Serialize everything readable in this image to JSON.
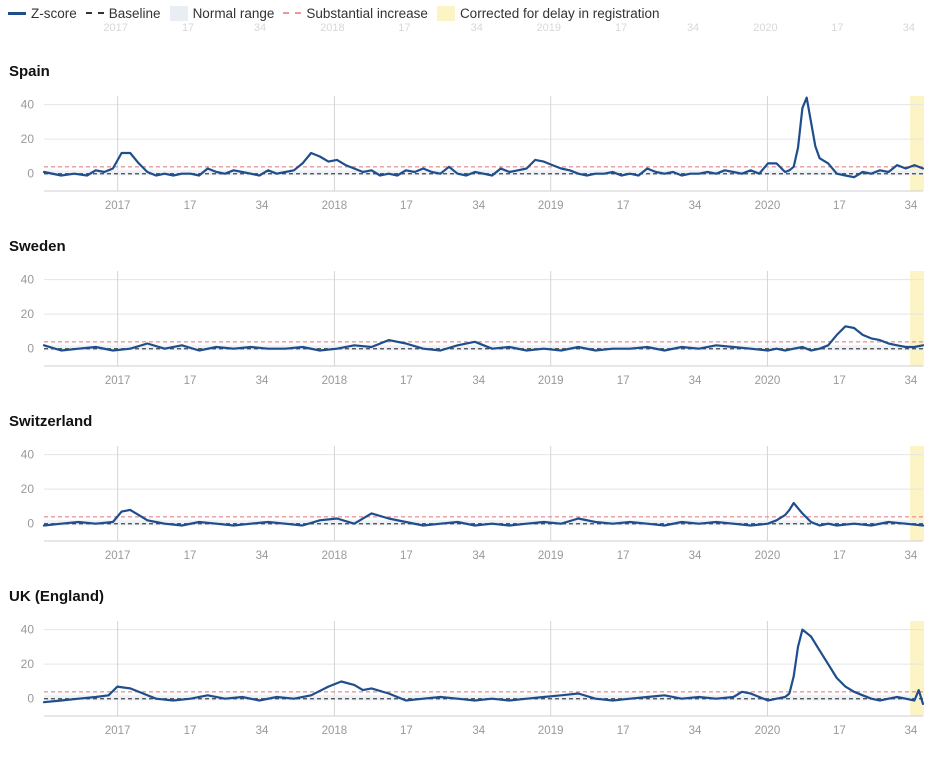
{
  "legend": {
    "zscore": "Z-score",
    "baseline": "Baseline",
    "normal_range": "Normal range",
    "substantial_increase": "Substantial increase",
    "corrected": "Corrected for delay in registration"
  },
  "colors": {
    "zscore_line": "#1f4e8c",
    "baseline": "#444444",
    "normal_range": "#e8eef4",
    "substantial_increase": "#e8999c",
    "corrected": "#fdf4c5",
    "grid": "#e5e5e5"
  },
  "chart_data": [
    {
      "type": "line",
      "title": "Spain",
      "x_tick_labels": [
        "2017",
        "17",
        "34",
        "2018",
        "17",
        "34",
        "2019",
        "17",
        "34",
        "2020",
        "17",
        "34"
      ],
      "ylim": [
        -10,
        45
      ],
      "y_ticks": [
        0,
        20,
        40
      ],
      "baseline": 0,
      "substantial_increase_threshold": 4,
      "series": [
        {
          "name": "Z-score",
          "x": [
            0,
            4,
            7,
            10,
            12,
            14,
            16,
            18,
            20,
            22,
            24,
            26,
            28,
            30,
            32,
            34,
            36,
            38,
            40,
            42,
            44,
            46,
            48,
            50,
            52,
            54,
            56,
            58,
            60,
            62,
            64,
            66,
            68,
            70,
            72,
            74,
            76,
            78,
            80,
            82,
            84,
            86,
            88,
            90,
            92,
            94,
            96,
            98,
            100,
            102,
            104,
            106,
            108,
            110,
            112,
            114,
            116,
            118,
            120,
            122,
            124,
            126,
            128,
            130,
            132,
            134,
            136,
            138,
            140,
            142,
            144,
            146,
            148,
            150,
            152,
            154,
            156,
            158,
            160,
            162,
            164,
            166,
            168,
            170,
            172,
            173,
            174,
            175,
            176,
            177,
            178,
            179,
            180,
            182,
            184,
            186,
            188,
            190,
            192,
            194,
            196,
            198,
            200,
            202,
            204
          ],
          "values": [
            1,
            -1,
            0,
            -1,
            2,
            1,
            3,
            12,
            12,
            6,
            1,
            -1,
            0,
            -1,
            0,
            0,
            -1,
            3,
            1,
            0,
            2,
            1,
            0,
            -1,
            2,
            0,
            1,
            2,
            6,
            12,
            10,
            7,
            8,
            5,
            3,
            1,
            2,
            -1,
            0,
            -1,
            2,
            1,
            3,
            1,
            0,
            4,
            0,
            -1,
            1,
            0,
            -1,
            3,
            1,
            2,
            3,
            8,
            7,
            5,
            3,
            2,
            0,
            -1,
            0,
            0,
            1,
            -1,
            0,
            -1,
            3,
            1,
            0,
            1,
            -1,
            0,
            0,
            1,
            0,
            2,
            1,
            0,
            2,
            0,
            6,
            6,
            1,
            2,
            4,
            15,
            38,
            44,
            30,
            16,
            9,
            6,
            0,
            -1,
            -2,
            1,
            0,
            2,
            1,
            5,
            3,
            5,
            3
          ]
        }
      ]
    },
    {
      "type": "line",
      "title": "Sweden",
      "x_tick_labels": [
        "2017",
        "17",
        "34",
        "2018",
        "17",
        "34",
        "2019",
        "17",
        "34",
        "2020",
        "17",
        "34"
      ],
      "ylim": [
        -10,
        45
      ],
      "y_ticks": [
        0,
        20,
        40
      ],
      "baseline": 0,
      "substantial_increase_threshold": 4,
      "series": [
        {
          "name": "Z-score",
          "x": [
            0,
            4,
            8,
            12,
            16,
            20,
            24,
            28,
            32,
            36,
            40,
            44,
            48,
            52,
            56,
            60,
            64,
            68,
            72,
            76,
            80,
            84,
            88,
            92,
            96,
            100,
            104,
            108,
            112,
            116,
            120,
            124,
            128,
            132,
            136,
            140,
            144,
            148,
            152,
            156,
            160,
            164,
            168,
            170,
            172,
            174,
            176,
            178,
            180,
            182,
            184,
            186,
            188,
            190,
            192,
            194,
            196,
            198,
            200,
            202,
            204
          ],
          "values": [
            2,
            -1,
            0,
            1,
            -1,
            0,
            3,
            0,
            2,
            -1,
            1,
            0,
            1,
            0,
            0,
            1,
            -1,
            0,
            2,
            1,
            5,
            3,
            0,
            -1,
            2,
            4,
            0,
            1,
            -1,
            0,
            -1,
            1,
            -1,
            0,
            0,
            1,
            -1,
            1,
            0,
            2,
            1,
            0,
            -1,
            0,
            -1,
            0,
            1,
            -1,
            0,
            2,
            8,
            13,
            12,
            8,
            6,
            5,
            3,
            2,
            1,
            1,
            2
          ]
        }
      ]
    },
    {
      "type": "line",
      "title": "Switzerland",
      "x_tick_labels": [
        "2017",
        "17",
        "34",
        "2018",
        "17",
        "34",
        "2019",
        "17",
        "34",
        "2020",
        "17",
        "34"
      ],
      "ylim": [
        -10,
        45
      ],
      "y_ticks": [
        0,
        20,
        40
      ],
      "baseline": 0,
      "substantial_increase_threshold": 4,
      "series": [
        {
          "name": "Z-score",
          "x": [
            0,
            4,
            8,
            12,
            16,
            18,
            20,
            22,
            24,
            26,
            28,
            32,
            36,
            40,
            44,
            48,
            52,
            56,
            60,
            64,
            68,
            72,
            76,
            80,
            84,
            88,
            92,
            96,
            100,
            104,
            108,
            112,
            116,
            120,
            124,
            128,
            132,
            136,
            140,
            144,
            148,
            152,
            156,
            160,
            164,
            168,
            170,
            172,
            173,
            174,
            175,
            176,
            178,
            180,
            182,
            184,
            188,
            192,
            196,
            200,
            204
          ],
          "values": [
            -1,
            0,
            1,
            0,
            1,
            7,
            8,
            5,
            2,
            1,
            0,
            -1,
            1,
            0,
            -1,
            0,
            1,
            0,
            -1,
            2,
            3,
            0,
            6,
            3,
            1,
            -1,
            0,
            1,
            -1,
            0,
            -1,
            0,
            1,
            0,
            3,
            1,
            0,
            1,
            0,
            -1,
            1,
            0,
            1,
            0,
            -1,
            0,
            2,
            5,
            8,
            12,
            9,
            6,
            1,
            -1,
            0,
            -1,
            0,
            -1,
            1,
            0,
            -1
          ]
        }
      ]
    },
    {
      "type": "line",
      "title": "UK (England)",
      "x_tick_labels": [
        "2017",
        "17",
        "34",
        "2018",
        "17",
        "34",
        "2019",
        "17",
        "34",
        "2020",
        "17",
        "34"
      ],
      "ylim": [
        -10,
        45
      ],
      "y_ticks": [
        0,
        20,
        40
      ],
      "baseline": 0,
      "substantial_increase_threshold": 4,
      "series": [
        {
          "name": "Z-score",
          "x": [
            0,
            4,
            8,
            12,
            15,
            17,
            20,
            23,
            26,
            30,
            34,
            38,
            42,
            46,
            50,
            54,
            58,
            62,
            66,
            69,
            72,
            74,
            76,
            80,
            84,
            88,
            92,
            96,
            100,
            104,
            108,
            112,
            116,
            120,
            124,
            128,
            132,
            136,
            140,
            144,
            148,
            152,
            156,
            160,
            162,
            164,
            166,
            168,
            170,
            172,
            173,
            174,
            175,
            176,
            178,
            180,
            182,
            184,
            186,
            188,
            190,
            192,
            194,
            196,
            198,
            200,
            202,
            203,
            204
          ],
          "values": [
            -2,
            -1,
            0,
            1,
            2,
            7,
            6,
            3,
            0,
            -1,
            0,
            2,
            0,
            1,
            -1,
            1,
            0,
            2,
            7,
            10,
            8,
            5,
            6,
            3,
            -1,
            0,
            1,
            0,
            -1,
            0,
            -1,
            0,
            1,
            2,
            3,
            0,
            -1,
            0,
            1,
            2,
            0,
            1,
            0,
            1,
            4,
            3,
            1,
            -1,
            0,
            1,
            3,
            13,
            30,
            40,
            36,
            28,
            20,
            12,
            7,
            4,
            2,
            0,
            -1,
            0,
            1,
            0,
            -1,
            5,
            -3
          ]
        }
      ]
    }
  ]
}
